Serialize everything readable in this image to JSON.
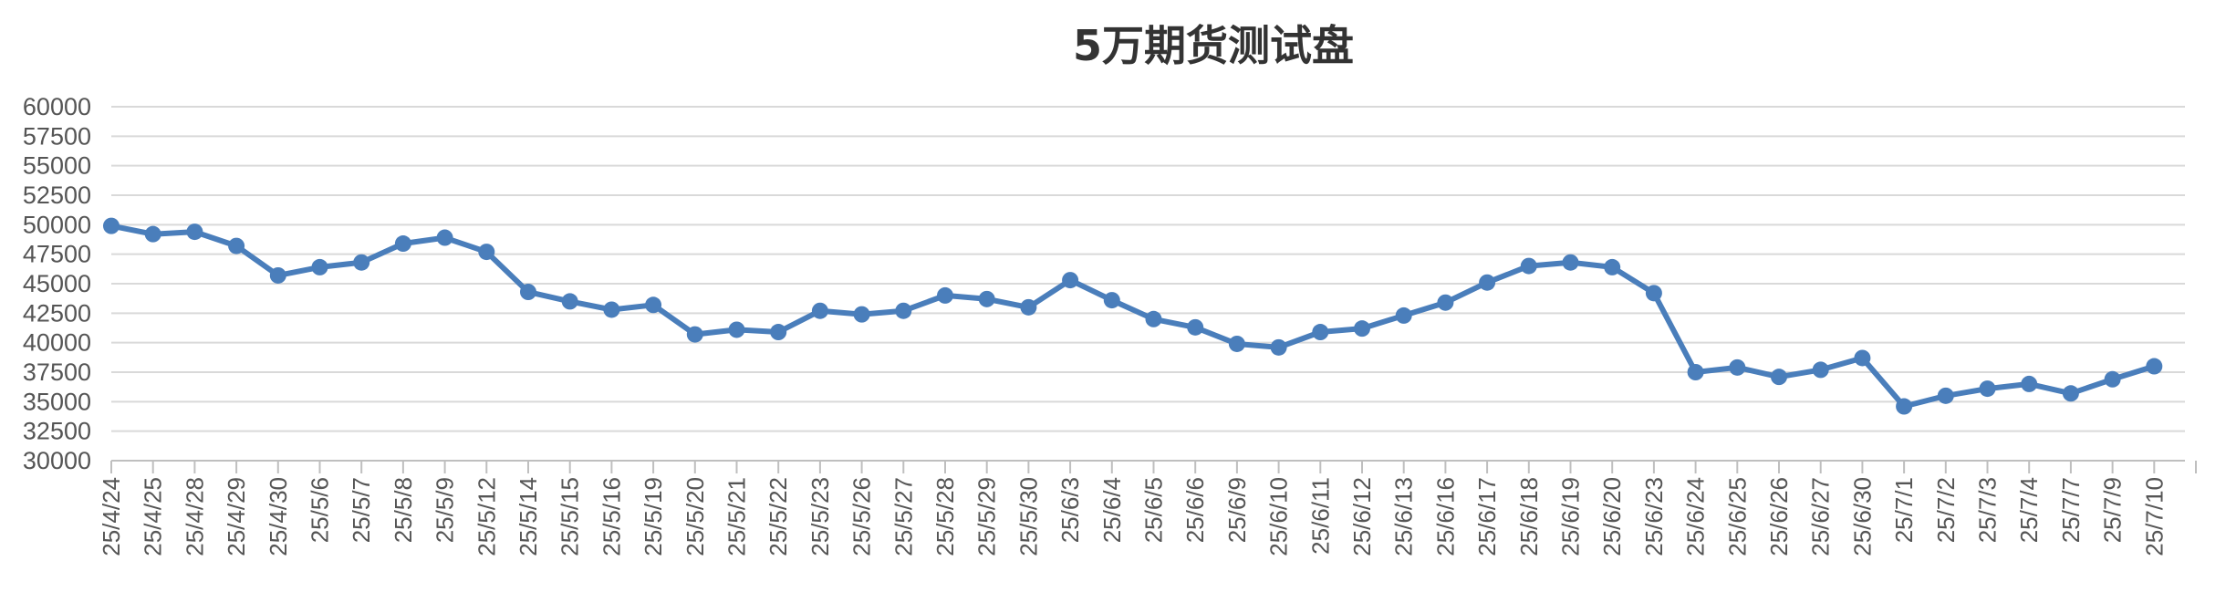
{
  "chart_data": {
    "type": "line",
    "title": "5万期货测试盘",
    "xlabel": "",
    "ylabel": "",
    "ylim": [
      30000,
      60000
    ],
    "ytick_step": 2500,
    "grid": true,
    "legend": "none",
    "line_color": "#4a7ebb",
    "grid_color": "#d9d9d9",
    "categories": [
      "25/4/24",
      "25/4/25",
      "25/4/28",
      "25/4/29",
      "25/4/30",
      "25/5/6",
      "25/5/7",
      "25/5/8",
      "25/5/9",
      "25/5/12",
      "25/5/14",
      "25/5/15",
      "25/5/16",
      "25/5/19",
      "25/5/20",
      "25/5/21",
      "25/5/22",
      "25/5/23",
      "25/5/26",
      "25/5/27",
      "25/5/28",
      "25/5/29",
      "25/5/30",
      "25/6/3",
      "25/6/4",
      "25/6/5",
      "25/6/6",
      "25/6/9",
      "25/6/10",
      "25/6/11",
      "25/6/12",
      "25/6/13",
      "25/6/16",
      "25/6/17",
      "25/6/18",
      "25/6/19",
      "25/6/20",
      "25/6/23",
      "25/6/24",
      "25/6/25",
      "25/6/26",
      "25/6/27",
      "25/6/30",
      "25/7/1",
      "25/7/2",
      "25/7/3",
      "25/7/4",
      "25/7/7",
      "25/7/9",
      "25/7/10"
    ],
    "series": [
      {
        "values": [
          49900,
          49200,
          49400,
          48200,
          45700,
          46400,
          46800,
          48400,
          48900,
          47700,
          44300,
          43500,
          42800,
          43200,
          40700,
          41100,
          40900,
          42700,
          42400,
          42700,
          44000,
          43700,
          43000,
          45300,
          43600,
          42000,
          41300,
          39900,
          39600,
          40900,
          41200,
          42300,
          43400,
          45100,
          46500,
          46800,
          46400,
          44200,
          37500,
          37900,
          37100,
          37700,
          38700,
          34600,
          35500,
          36100,
          36500,
          35700,
          36900,
          38000
        ]
      }
    ]
  }
}
